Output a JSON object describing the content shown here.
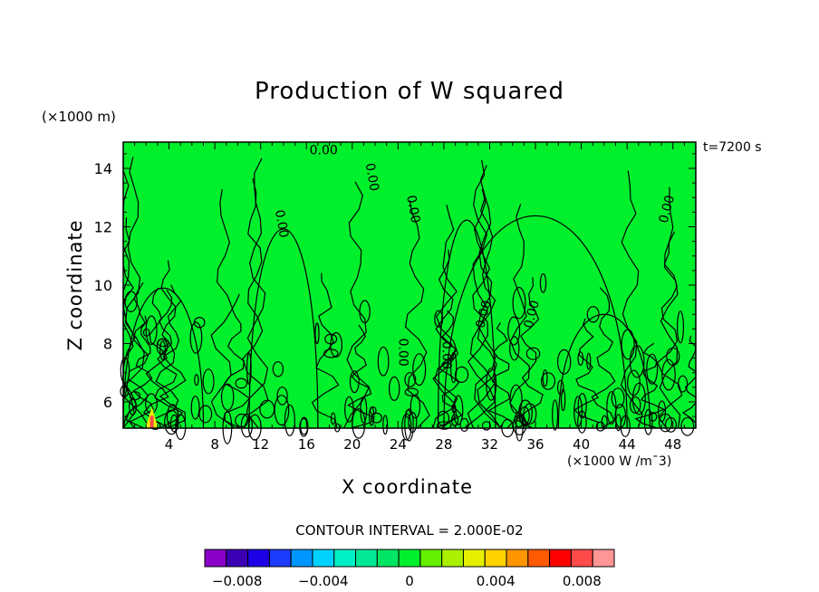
{
  "chart_data": {
    "type": "heatmap",
    "title": "Production of W squared",
    "xlabel": "X coordinate",
    "ylabel": "Z coordinate",
    "x_unit_label": "(×1000 W /m¯3)",
    "y_unit_label": "(×1000 m)",
    "time_label": "t=7200 s",
    "xlim": [
      0,
      50
    ],
    "ylim": [
      5.1,
      14.9
    ],
    "x_ticks": [
      4,
      8,
      12,
      16,
      20,
      24,
      28,
      32,
      36,
      40,
      44,
      48
    ],
    "y_ticks": [
      6,
      8,
      10,
      12,
      14
    ],
    "field_fill_value": 0,
    "contour_labels": [
      {
        "text": "0.00",
        "x": 17.5,
        "y": 14.6,
        "angle": 0
      },
      {
        "text": "0.00",
        "x": 21.7,
        "y": 13.7,
        "angle": 80
      },
      {
        "text": "0.00",
        "x": 25.3,
        "y": 12.6,
        "angle": 80
      },
      {
        "text": "0.00",
        "x": 13.8,
        "y": 12.1,
        "angle": 80
      },
      {
        "text": "0.00",
        "x": 47.5,
        "y": 12.6,
        "angle": -75
      },
      {
        "text": "0.00",
        "x": 31.5,
        "y": 9.0,
        "angle": -75
      },
      {
        "text": "0.00",
        "x": 35.7,
        "y": 9.0,
        "angle": -75
      },
      {
        "text": "0.00",
        "x": 28.2,
        "y": 7.6,
        "angle": 90
      },
      {
        "text": "0.00",
        "x": 24.4,
        "y": 7.7,
        "angle": 90
      }
    ],
    "hotspot": {
      "x": 2.5,
      "y": 5.4,
      "value": 0.008
    },
    "contour_interval_label": "CONTOUR INTERVAL = 2.000E-02",
    "colorbar": {
      "colors": [
        "#8a00c8",
        "#3c00b4",
        "#1e00e6",
        "#1e3cff",
        "#0096ff",
        "#00d2ff",
        "#00f0c8",
        "#00e896",
        "#00e664",
        "#00f02c",
        "#64f000",
        "#aaf000",
        "#e6f000",
        "#ffd200",
        "#ff9600",
        "#ff5a00",
        "#ff0000",
        "#ff4a4a",
        "#ff9696"
      ],
      "tick_labels": [
        "-0.008",
        "-0.004",
        "0",
        "0.004",
        "0.008"
      ],
      "tick_values": [
        -0.008,
        -0.004,
        0,
        0.004,
        0.008
      ],
      "vmin": -0.0095,
      "vmax": 0.0095
    }
  }
}
